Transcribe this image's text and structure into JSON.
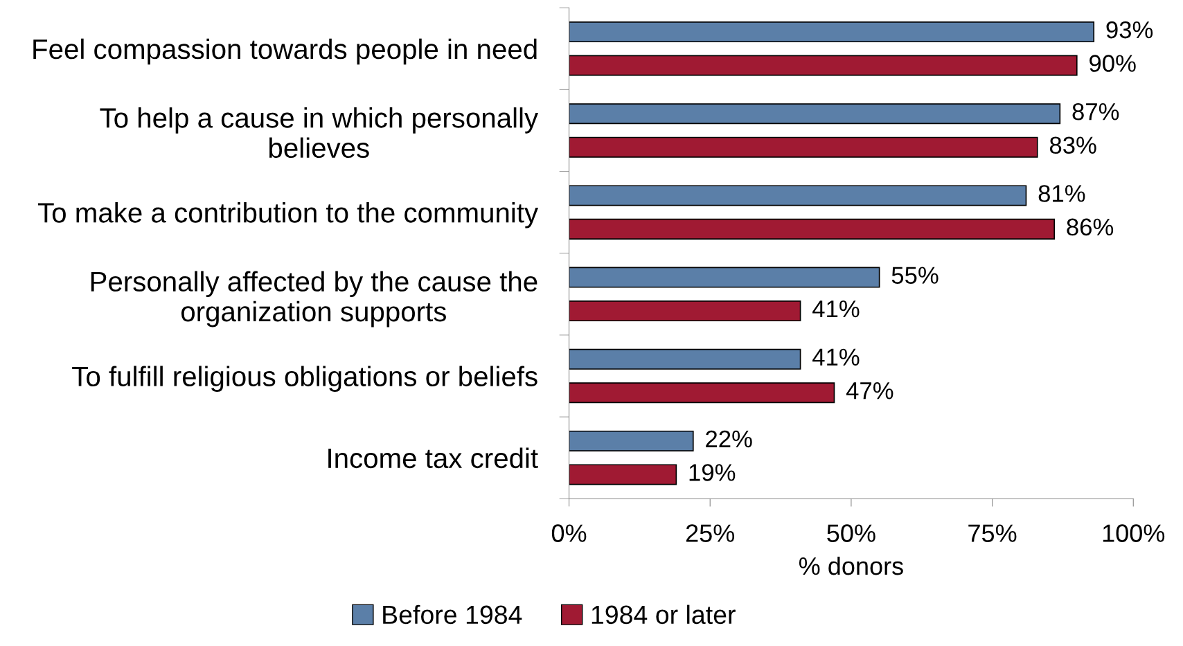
{
  "chart_data": {
    "type": "bar",
    "orientation": "horizontal",
    "categories": [
      "Feel compassion towards people in need",
      "To help a cause in which personally\nbelieves",
      "To make a contribution to the community",
      "Personally affected by the cause the\norganization supports",
      "To fulfill religious obligations or beliefs",
      "Income tax credit"
    ],
    "series": [
      {
        "name": "Before 1984",
        "color": "#5b7fa8",
        "values": [
          93,
          87,
          81,
          55,
          41,
          22
        ],
        "value_labels": [
          "93%",
          "87%",
          "81%",
          "55%",
          "41%",
          "22%"
        ]
      },
      {
        "name": "1984 or later",
        "color": "#a01a33",
        "values": [
          90,
          83,
          86,
          41,
          47,
          19
        ],
        "value_labels": [
          "90%",
          "83%",
          "86%",
          "41%",
          "47%",
          "19%"
        ]
      }
    ],
    "xlabel": "% donors",
    "xlim": [
      0,
      100
    ],
    "xticks": [
      {
        "value": 0,
        "label": "0%"
      },
      {
        "value": 25,
        "label": "25%"
      },
      {
        "value": 50,
        "label": "50%"
      },
      {
        "value": 75,
        "label": "75%"
      },
      {
        "value": 100,
        "label": "100%"
      }
    ],
    "legend": "bottom",
    "grid": false
  }
}
